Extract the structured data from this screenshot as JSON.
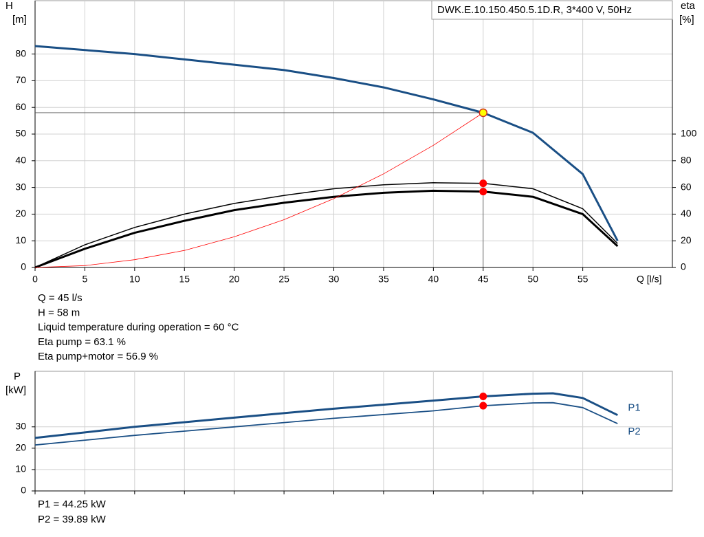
{
  "chart_data": [
    {
      "type": "line",
      "ylabel": "H",
      "yunit": "[m]",
      "y2label": "eta",
      "y2unit": "[%]",
      "xlabel": "Q [l/s]",
      "box": "DWK.E.10.150.450.5.1D.R, 3*400  V, 50Hz",
      "xlim": [
        0,
        64
      ],
      "xticks": [
        0,
        5,
        10,
        15,
        20,
        25,
        30,
        35,
        40,
        45,
        50,
        55
      ],
      "ylim": [
        0,
        100
      ],
      "yticks": [
        0,
        10,
        20,
        30,
        40,
        50,
        60,
        70,
        80
      ],
      "y2lim": [
        0,
        200
      ],
      "y2ticks": [
        0,
        20,
        40,
        60,
        80,
        100
      ],
      "grid": true,
      "series": [
        {
          "color": "#1a4f85",
          "width": 3,
          "x": [
            0,
            5,
            10,
            15,
            20,
            25,
            30,
            35,
            40,
            45,
            50,
            55,
            58.5
          ],
          "values": [
            83,
            81.5,
            80,
            78,
            76,
            74,
            71,
            67.5,
            63,
            58,
            50.5,
            35,
            10
          ]
        },
        {
          "color": "#000000",
          "width": 1.5,
          "axis": "y2",
          "x": [
            0,
            5,
            10,
            15,
            20,
            25,
            30,
            35,
            40,
            45,
            50,
            55,
            58.5
          ],
          "values": [
            0,
            17,
            30,
            40,
            48,
            54,
            59,
            62,
            63.5,
            63.1,
            59,
            44,
            18
          ]
        },
        {
          "color": "#000000",
          "width": 3,
          "axis": "y2",
          "x": [
            0,
            5,
            10,
            15,
            20,
            25,
            30,
            35,
            40,
            45,
            50,
            55,
            58.5
          ],
          "values": [
            0,
            14,
            26,
            35,
            43,
            48.5,
            53,
            56,
            57.5,
            56.9,
            53,
            40,
            16
          ]
        },
        {
          "color": "#ff0000",
          "width": 0.8,
          "x": [
            0,
            5,
            10,
            15,
            20,
            25,
            30,
            35,
            40,
            45
          ],
          "values": [
            0,
            0.7,
            2.9,
            6.4,
            11.5,
            17.9,
            25.8,
            35.1,
            45.8,
            58
          ]
        }
      ],
      "points": [
        {
          "x": 45,
          "y": 58,
          "color": "#ffff00",
          "crosshair": true
        },
        {
          "x": 45,
          "y": 63.1,
          "color": "#ff0000",
          "axis": "y2"
        },
        {
          "x": 45,
          "y": 56.9,
          "color": "#ff0000",
          "axis": "y2"
        }
      ],
      "notes": [
        "Q = 45 l/s",
        "H = 58 m",
        "Liquid temperature during operation = 60 °C",
        "Eta pump = 63.1 %",
        "Eta pump+motor = 56.9 %"
      ]
    },
    {
      "type": "line",
      "ylabel": "P",
      "yunit": "[kW]",
      "xlim": [
        0,
        64
      ],
      "xticks": [
        0,
        5,
        10,
        15,
        20,
        25,
        30,
        35,
        40,
        45,
        50,
        55
      ],
      "ylim": [
        0,
        56
      ],
      "yticks": [
        0,
        10,
        20,
        30
      ],
      "grid": true,
      "series": [
        {
          "name": "P1",
          "color": "#1a4f85",
          "width": 3,
          "x": [
            0,
            10,
            20,
            30,
            40,
            45,
            50,
            52,
            55,
            58.5
          ],
          "values": [
            24.8,
            30,
            34.3,
            38.5,
            42.3,
            44.25,
            45.5,
            45.7,
            43.5,
            35.5
          ]
        },
        {
          "name": "P2",
          "color": "#1a4f85",
          "width": 1.8,
          "x": [
            0,
            10,
            20,
            30,
            40,
            45,
            50,
            52,
            55,
            58.5
          ],
          "values": [
            21.5,
            26,
            30,
            34,
            37.5,
            39.89,
            41.2,
            41.3,
            39,
            31.5
          ]
        }
      ],
      "points": [
        {
          "x": 45,
          "y": 44.25,
          "color": "#ff0000"
        },
        {
          "x": 45,
          "y": 39.89,
          "color": "#ff0000"
        }
      ],
      "notes": [
        "P1 = 44.25 kW",
        "P2 = 39.89 kW"
      ]
    }
  ]
}
